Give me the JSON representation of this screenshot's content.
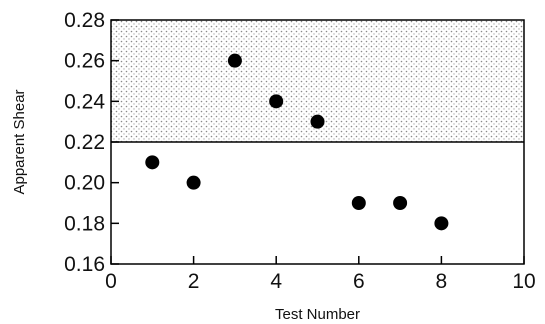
{
  "chart_data": {
    "type": "scatter",
    "title": "",
    "xlabel": "Test Number",
    "ylabel": "Apparent Shear",
    "xlim": [
      0,
      10
    ],
    "ylim": [
      0.16,
      0.28
    ],
    "x_ticks": [
      0,
      2,
      4,
      6,
      8,
      10
    ],
    "y_ticks": [
      0.16,
      0.18,
      0.2,
      0.22,
      0.24,
      0.26,
      0.28
    ],
    "x_tick_labels": [
      "0",
      "2",
      "4",
      "6",
      "8",
      "10"
    ],
    "y_tick_labels": [
      "0.16",
      "0.18",
      "0.20",
      "0.22",
      "0.24",
      "0.26",
      "0.28"
    ],
    "grid": false,
    "legend": "none",
    "shaded_region": {
      "y_from": 0.22,
      "y_to": 0.28,
      "pattern": "dotted",
      "color": "#9a9a9a"
    },
    "points": [
      {
        "x": 1,
        "y": 0.21
      },
      {
        "x": 2,
        "y": 0.2
      },
      {
        "x": 3,
        "y": 0.26
      },
      {
        "x": 4,
        "y": 0.24
      },
      {
        "x": 5,
        "y": 0.23
      },
      {
        "x": 6,
        "y": 0.19
      },
      {
        "x": 7,
        "y": 0.19
      },
      {
        "x": 8,
        "y": 0.18
      }
    ],
    "marker_color": "#000000",
    "axis_color": "#000000"
  }
}
